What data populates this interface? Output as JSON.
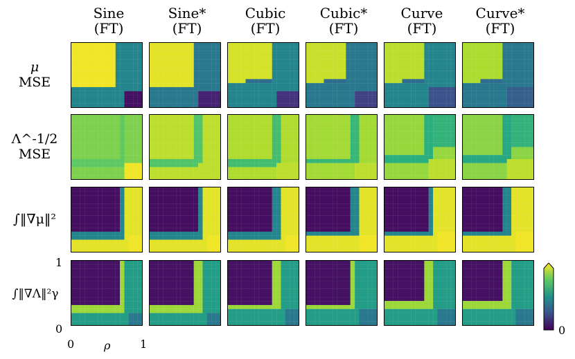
{
  "chart_data": {
    "type": "heatmap",
    "columns": [
      {
        "title": "Sine",
        "subtitle": "(FT)"
      },
      {
        "title": "Sine*",
        "subtitle": "(FT)"
      },
      {
        "title": "Cubic",
        "subtitle": "(FT)"
      },
      {
        "title": "Cubic*",
        "subtitle": "(FT)"
      },
      {
        "title": "Curve",
        "subtitle": "(FT)"
      },
      {
        "title": "Curve*",
        "subtitle": "(FT)"
      }
    ],
    "rows": [
      {
        "label_top": "μ",
        "label_bottom": "MSE"
      },
      {
        "label_top": "Λ^-1/2",
        "label_bottom": "MSE"
      },
      {
        "label_top": "∫‖∇μ‖²",
        "label_bottom": ""
      },
      {
        "label_top": "∫‖∇Λ‖²γ",
        "label_bottom": ""
      }
    ],
    "xlabel": "ρ",
    "x_ticks": [
      "0",
      "1"
    ],
    "y_ticks": [
      "0",
      "1"
    ],
    "colorbar": {
      "min_label": "0",
      "colormap": "viridis",
      "extend": "max"
    },
    "colors": {
      "low": "#440154",
      "mid": "#21918c",
      "high": "#fde725"
    }
  }
}
